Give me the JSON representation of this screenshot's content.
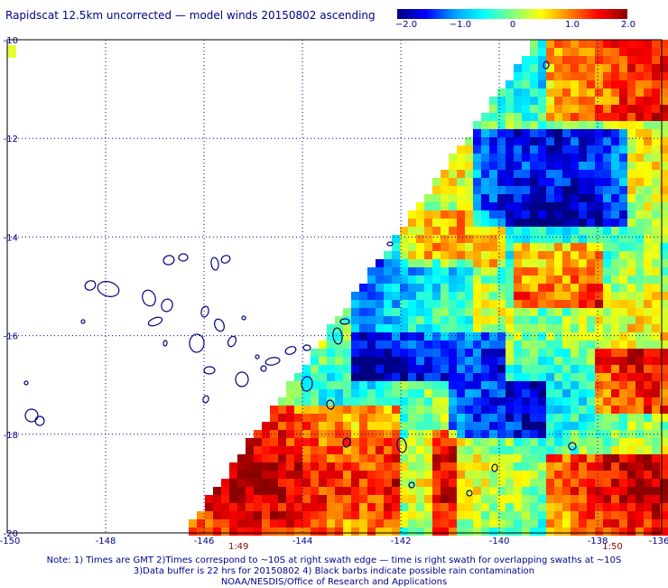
{
  "title": "Rapidscat 12.5km uncorrected — model winds 20150802 ascending",
  "colorbar": {
    "labels": [
      "−2.0",
      "−1.0",
      "0",
      "1.0",
      "2.0"
    ],
    "colors": [
      "#000080",
      "#0000ff",
      "#00ffff",
      "#80ff80",
      "#ffff00",
      "#ff0000",
      "#8b0000"
    ]
  },
  "map": {
    "lon_ticks": [
      "-150",
      "-148",
      "-146",
      "-144",
      "-142",
      "-140",
      "-138",
      "-136"
    ],
    "lat_ticks": [
      "-10",
      "-12",
      "-14",
      "-16",
      "-18",
      "-20"
    ],
    "lon_range": [
      -150,
      -136.7
    ],
    "lat_range": [
      -10,
      -20
    ],
    "time_labels": [
      {
        "text": "1:49",
        "lon": -145.3
      },
      {
        "text": "1:50",
        "lon": -137.7
      }
    ],
    "grid": true
  },
  "notes": [
    "Note: 1) Times are GMT 2)Times correspond to ~10S at right swath edge — time is right swath for overlapping swaths at ~10S",
    "3)Data buffer is 22 hrs for 20150802 4) Black barbs indicate possible rain contamination",
    "NOAA/NESDIS/Office of Research and Applications"
  ]
}
